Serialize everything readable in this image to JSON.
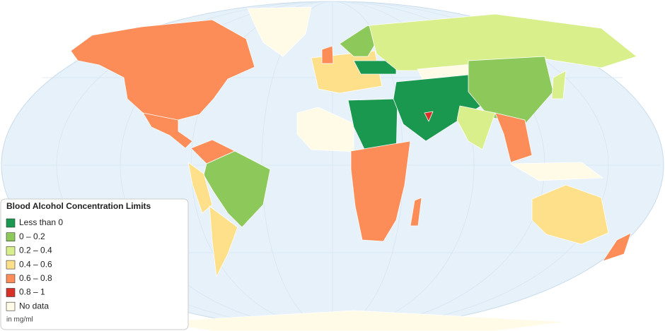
{
  "legend": {
    "title": "Blood Alcohol Concentration Limits",
    "items": [
      {
        "label": "Less than 0",
        "color": "#1a9850"
      },
      {
        "label": "0 – 0.2",
        "color": "#8cc95a"
      },
      {
        "label": "0.2 – 0.4",
        "color": "#d9ef8b"
      },
      {
        "label": "0.4 – 0.6",
        "color": "#fee08b"
      },
      {
        "label": "0.6 – 0.8",
        "color": "#fc8d59"
      },
      {
        "label": "0.8 – 1",
        "color": "#d73027"
      },
      {
        "label": "No data",
        "color": "#fffbe6"
      }
    ],
    "note": "in mg/ml"
  }
}
